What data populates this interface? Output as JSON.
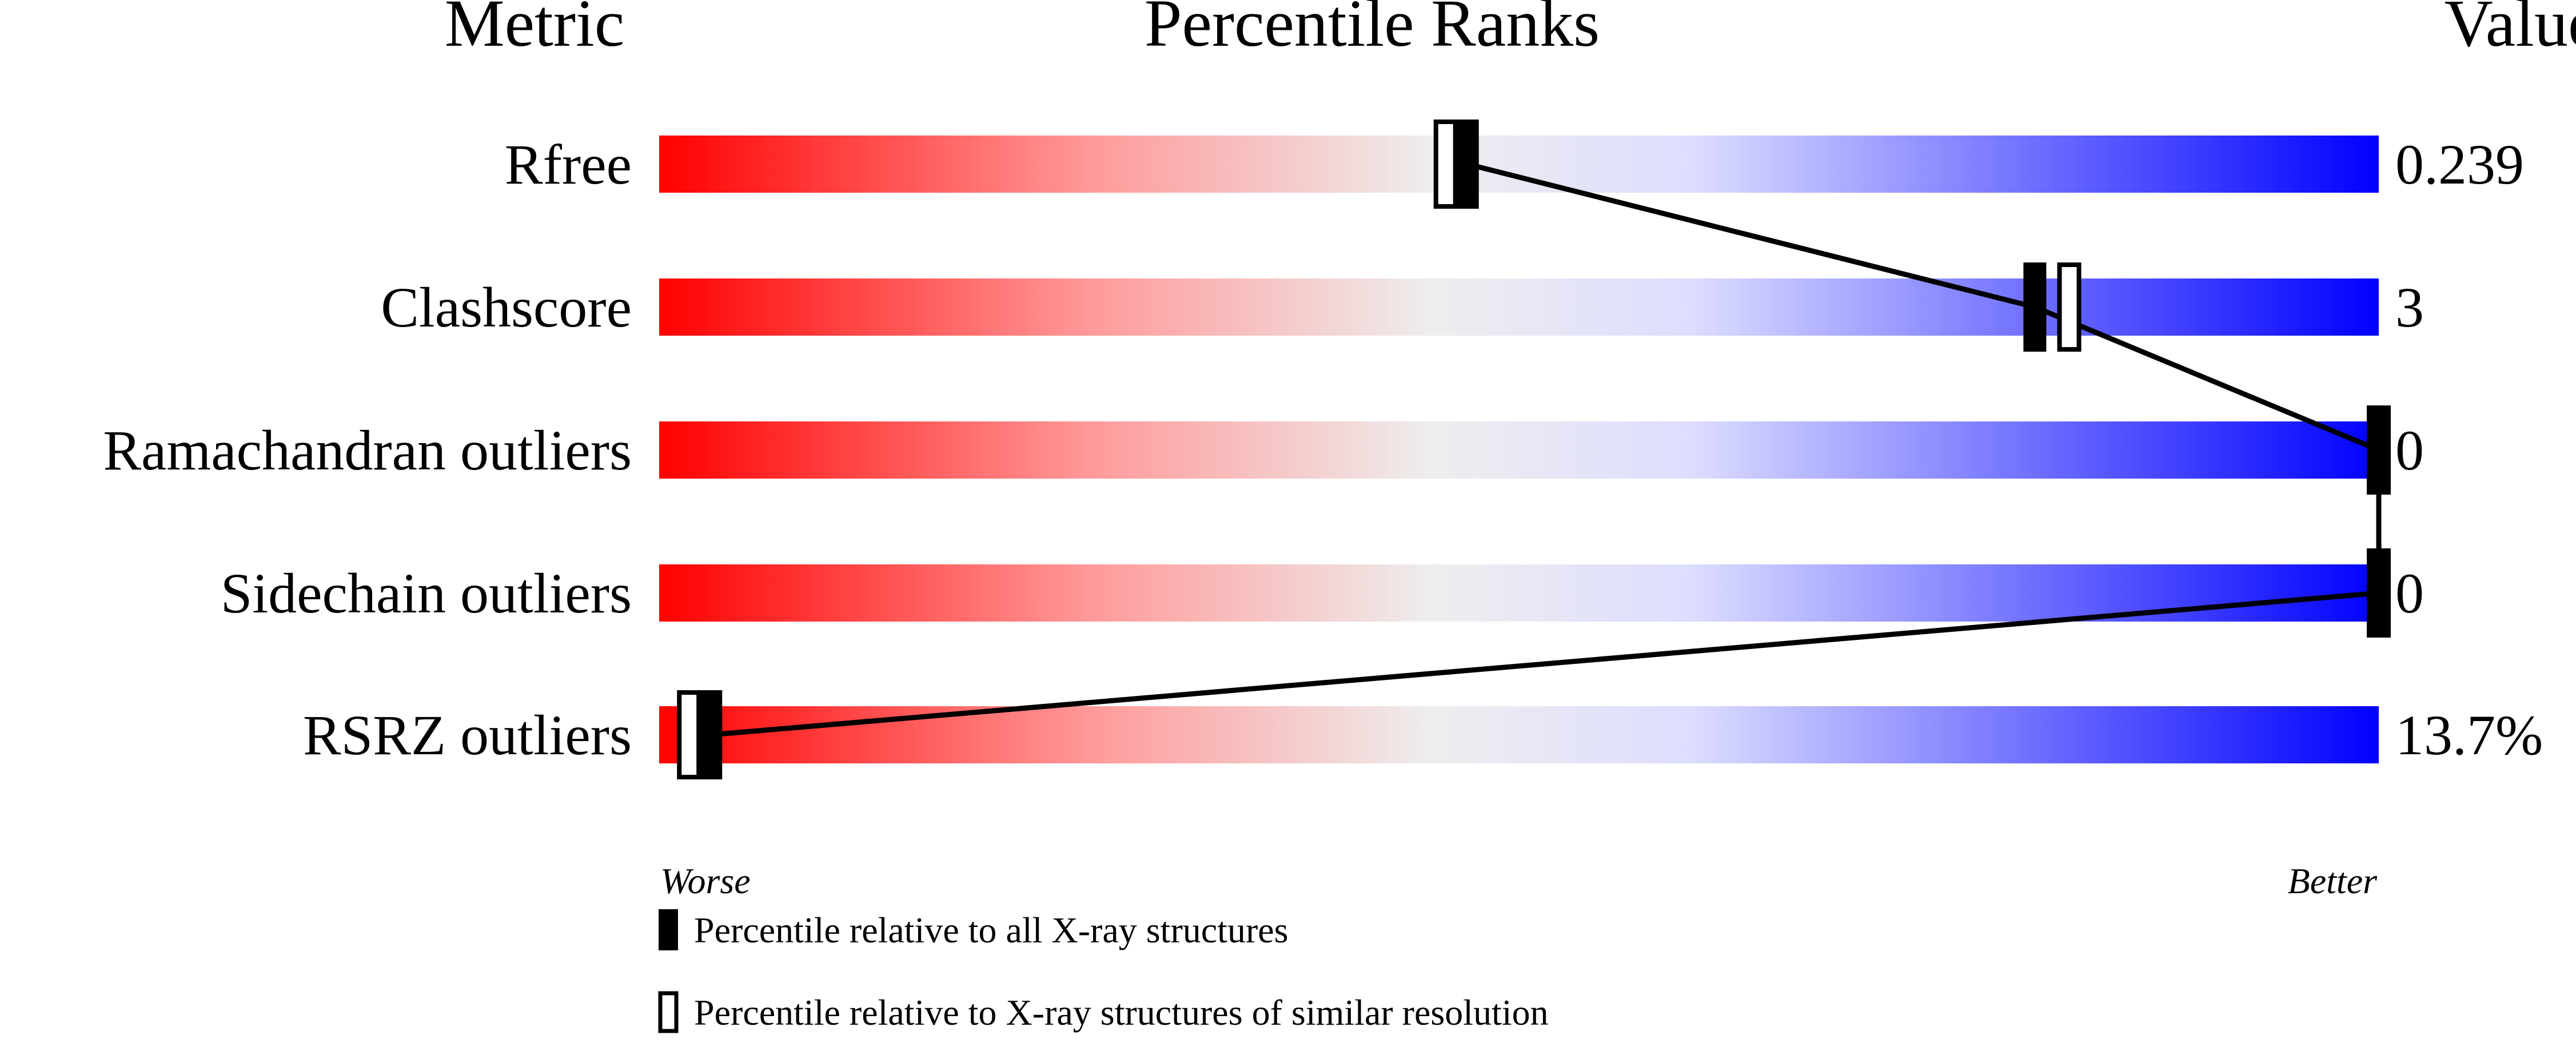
{
  "chart_data": {
    "type": "percentile-slider",
    "headers": {
      "metric": "Metric",
      "ranks": "Percentile Ranks",
      "value": "Value"
    },
    "xlim": [
      0,
      100
    ],
    "axis_labels": {
      "left": "Worse",
      "right": "Better"
    },
    "gradient_colors": [
      "#ff0000",
      "#ff9999",
      "#eeeeee",
      "#ddddff",
      "#0000ff"
    ],
    "rows": [
      {
        "metric": "Rfree",
        "value": "0.239",
        "percentile_all": 47,
        "percentile_similar": 46
      },
      {
        "metric": "Clashscore",
        "value": "3",
        "percentile_all": 80,
        "percentile_similar": 82
      },
      {
        "metric": "Ramachandran outliers",
        "value": "0",
        "percentile_all": 100,
        "percentile_similar": 100
      },
      {
        "metric": "Sidechain outliers",
        "value": "0",
        "percentile_all": 100,
        "percentile_similar": 100
      },
      {
        "metric": "RSRZ outliers",
        "value": "13.7%",
        "percentile_all": 3,
        "percentile_similar": 2
      }
    ],
    "legend": [
      {
        "marker": "filled",
        "label": "Percentile relative to all X-ray structures"
      },
      {
        "marker": "hollow",
        "label": "Percentile relative to X-ray structures of similar resolution"
      }
    ]
  }
}
